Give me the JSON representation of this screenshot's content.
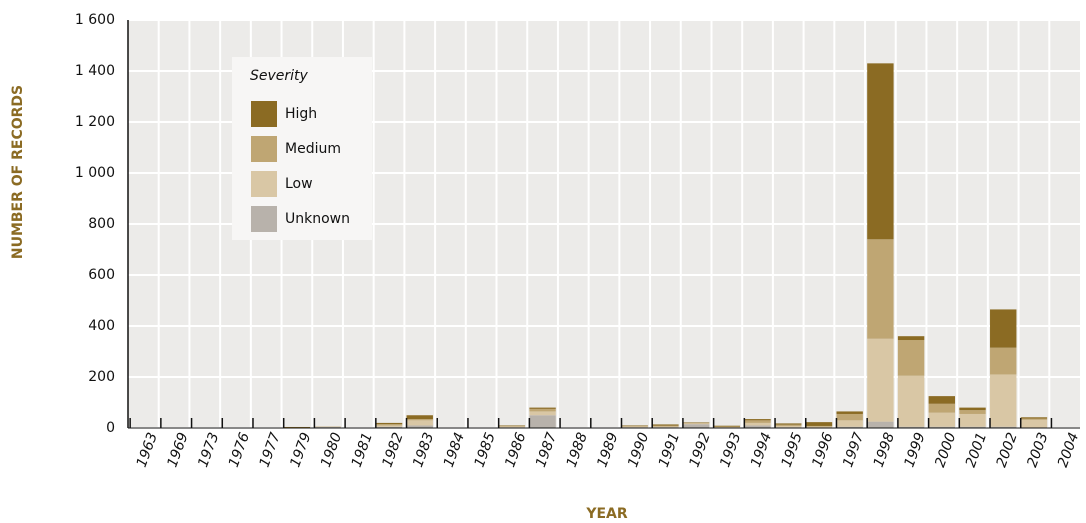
{
  "chart_data": {
    "type": "stacked_bar",
    "y_label": "NUMBER OF RECORDS",
    "x_label": "YEAR",
    "legend_title": "Severity",
    "categories": [
      "1963",
      "1969",
      "1973",
      "1976",
      "1977",
      "1979",
      "1980",
      "1981",
      "1982",
      "1983",
      "1984",
      "1985",
      "1986",
      "1987",
      "1988",
      "1989",
      "1990",
      "1991",
      "1992",
      "1993",
      "1994",
      "1995",
      "1996",
      "1997",
      "1998",
      "1999",
      "2000",
      "2001",
      "2002",
      "2003",
      "2004"
    ],
    "series": [
      {
        "name": "High",
        "color": "#8b6b23",
        "values": [
          1,
          1,
          1,
          1,
          1,
          2,
          0,
          2,
          5,
          15,
          2,
          2,
          2,
          5,
          2,
          2,
          2,
          5,
          2,
          3,
          5,
          5,
          15,
          10,
          690,
          15,
          30,
          10,
          150,
          5,
          1
        ]
      },
      {
        "name": "Medium",
        "color": "#bfa673",
        "values": [
          0,
          0,
          0,
          0,
          0,
          0,
          0,
          0,
          5,
          5,
          0,
          0,
          2,
          10,
          0,
          0,
          2,
          3,
          2,
          2,
          10,
          5,
          3,
          25,
          390,
          140,
          35,
          15,
          105,
          5,
          0
        ]
      },
      {
        "name": "Low",
        "color": "#d9c7a5",
        "values": [
          0,
          0,
          0,
          0,
          0,
          0,
          2,
          0,
          5,
          20,
          0,
          0,
          3,
          15,
          0,
          0,
          3,
          3,
          3,
          2,
          10,
          5,
          3,
          25,
          325,
          200,
          55,
          50,
          205,
          30,
          0
        ]
      },
      {
        "name": "Unknown",
        "color": "#b8b2ab",
        "values": [
          0,
          0,
          0,
          0,
          0,
          2,
          5,
          0,
          5,
          10,
          0,
          0,
          3,
          50,
          0,
          0,
          3,
          3,
          15,
          2,
          10,
          3,
          2,
          5,
          25,
          5,
          5,
          5,
          5,
          2,
          0
        ]
      }
    ],
    "ylim": [
      0,
      1600
    ],
    "yticks": [
      0,
      200,
      400,
      600,
      800,
      {
        "value": 1000,
        "label": "1 000"
      },
      {
        "value": 1200,
        "label": "1 200"
      },
      {
        "value": 1400,
        "label": "1 400"
      },
      {
        "value": 1600,
        "label": "1 600"
      }
    ],
    "grid": true
  }
}
